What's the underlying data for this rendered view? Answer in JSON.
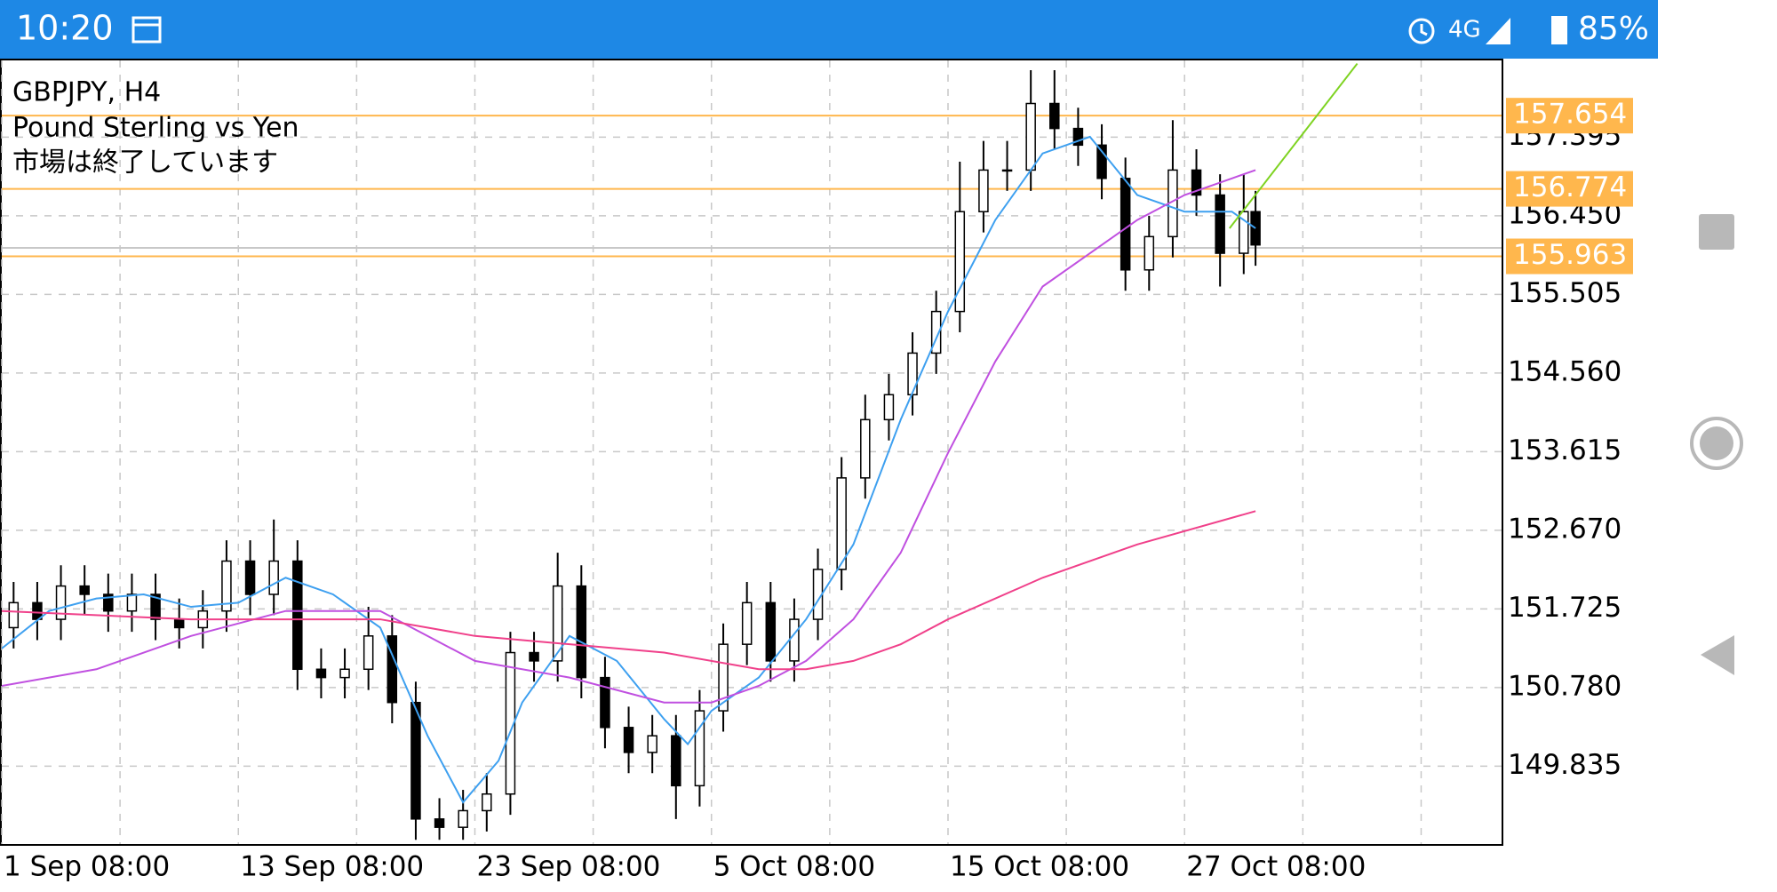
{
  "status_bar": {
    "time": "10:20",
    "network": "4G",
    "battery": "85%"
  },
  "chart_data": {
    "type": "candlestick",
    "title": "GBPJPY, H4",
    "subtitle": "Pound Sterling vs Yen",
    "annotation": "市場は終了しています",
    "ylim": [
      148.899,
      158.318
    ],
    "yticks": [
      149.835,
      {
        "value": 150.78,
        "label": "150.780"
      },
      151.725,
      {
        "value": 152.67,
        "label": "152.670"
      },
      153.615,
      {
        "value": 154.56,
        "label": "154.560"
      },
      155.505,
      {
        "value": 156.45,
        "label": "156.450"
      },
      157.395
    ],
    "xlim": [
      0,
      63.4
    ],
    "xticks": [
      {
        "value": 0,
        "label": "1 Sep 08:00"
      },
      {
        "value": 10,
        "label": "13 Sep 08:00"
      },
      {
        "value": 20,
        "label": "23 Sep 08:00"
      },
      {
        "value": 30,
        "label": "5 Oct 08:00"
      },
      {
        "value": 40,
        "label": "15 Oct 08:00"
      },
      {
        "value": 50,
        "label": "27 Oct 08:00"
      }
    ],
    "xgrid": [
      5,
      15,
      25,
      35,
      45,
      55,
      60
    ],
    "grid": true,
    "x": [
      0.5,
      1.5,
      2.5,
      3.5,
      4.5,
      5.5,
      6.5,
      7.5,
      8.5,
      9.5,
      10.5,
      11.5,
      12.5,
      13.5,
      14.5,
      15.5,
      16.5,
      17.5,
      18.5,
      19.5,
      20.5,
      21.5,
      22.5,
      23.5,
      24.5,
      25.5,
      26.5,
      27.5,
      28.5,
      29.5,
      30.5,
      31.5,
      32.5,
      33.5,
      34.5,
      35.5,
      36.5,
      37.5,
      38.5,
      39.5,
      40.5,
      41.5,
      42.5,
      43.5,
      44.5,
      45.5,
      46.5,
      47.5,
      48.5,
      49.5,
      50.5,
      51.5,
      52.5,
      53.0
    ],
    "ohlc": [
      [
        151.5,
        152.05,
        151.25,
        151.8
      ],
      [
        151.8,
        152.05,
        151.35,
        151.6
      ],
      [
        151.6,
        152.25,
        151.35,
        152.0
      ],
      [
        152.0,
        152.25,
        151.65,
        151.9
      ],
      [
        151.9,
        152.15,
        151.45,
        151.7
      ],
      [
        151.7,
        152.15,
        151.45,
        151.9
      ],
      [
        151.9,
        152.15,
        151.35,
        151.6
      ],
      [
        151.6,
        151.85,
        151.25,
        151.5
      ],
      [
        151.5,
        151.95,
        151.25,
        151.7
      ],
      [
        151.7,
        152.55,
        151.45,
        152.3
      ],
      [
        152.3,
        152.55,
        151.65,
        151.9
      ],
      [
        151.9,
        152.8,
        151.65,
        152.3
      ],
      [
        152.3,
        152.55,
        150.75,
        151.0
      ],
      [
        151.0,
        151.25,
        150.65,
        150.9
      ],
      [
        150.9,
        151.25,
        150.65,
        151.0
      ],
      [
        151.0,
        151.75,
        150.75,
        151.4
      ],
      [
        151.4,
        151.65,
        150.35,
        150.6
      ],
      [
        150.6,
        150.85,
        148.95,
        149.2
      ],
      [
        149.2,
        149.45,
        148.95,
        149.1
      ],
      [
        149.1,
        149.55,
        148.95,
        149.3
      ],
      [
        149.3,
        149.75,
        149.05,
        149.5
      ],
      [
        149.5,
        151.45,
        149.25,
        151.2
      ],
      [
        151.2,
        151.45,
        150.85,
        151.1
      ],
      [
        151.1,
        152.4,
        150.85,
        152.0
      ],
      [
        152.0,
        152.25,
        150.65,
        150.9
      ],
      [
        150.9,
        151.15,
        150.05,
        150.3
      ],
      [
        150.3,
        150.55,
        149.75,
        150.0
      ],
      [
        150.0,
        150.45,
        149.75,
        150.2
      ],
      [
        150.2,
        150.45,
        149.2,
        149.6
      ],
      [
        149.6,
        150.75,
        149.35,
        150.5
      ],
      [
        150.5,
        151.55,
        150.25,
        151.3
      ],
      [
        151.3,
        152.05,
        151.05,
        151.8
      ],
      [
        151.8,
        152.05,
        150.85,
        151.1
      ],
      [
        151.1,
        151.85,
        150.85,
        151.6
      ],
      [
        151.6,
        152.45,
        151.35,
        152.2
      ],
      [
        152.2,
        153.55,
        151.95,
        153.3
      ],
      [
        153.3,
        154.3,
        153.05,
        154.0
      ],
      [
        154.0,
        154.55,
        153.75,
        154.3
      ],
      [
        154.3,
        155.05,
        154.05,
        154.8
      ],
      [
        154.8,
        155.55,
        154.55,
        155.3
      ],
      [
        155.3,
        157.1,
        155.05,
        156.5
      ],
      [
        156.5,
        157.35,
        156.25,
        157.0
      ],
      [
        157.0,
        157.35,
        156.75,
        157.0
      ],
      [
        157.0,
        158.2,
        156.75,
        157.8
      ],
      [
        157.8,
        158.2,
        157.25,
        157.5
      ],
      [
        157.5,
        157.75,
        157.05,
        157.3
      ],
      [
        157.3,
        157.55,
        156.65,
        156.9
      ],
      [
        156.9,
        157.15,
        155.55,
        155.8
      ],
      [
        155.8,
        156.45,
        155.55,
        156.2
      ],
      [
        156.2,
        157.6,
        155.95,
        157.0
      ],
      [
        157.0,
        157.25,
        156.45,
        156.7
      ],
      [
        156.7,
        156.95,
        155.6,
        156.0
      ],
      [
        156.0,
        156.95,
        155.75,
        156.5
      ],
      [
        156.5,
        156.75,
        155.85,
        156.1
      ]
    ],
    "bull_color": "#ffffff",
    "bear_color": "#000000",
    "moving_averages": [
      {
        "color": "#3ea0f0",
        "x": [
          0,
          2,
          4,
          6,
          8,
          10,
          12,
          14,
          16,
          18,
          19.5,
          21,
          22,
          24,
          26,
          28,
          29,
          30,
          32,
          34,
          36,
          38,
          40,
          42,
          44,
          46,
          48,
          50,
          52,
          53
        ],
        "values": [
          151.25,
          151.7,
          151.85,
          151.9,
          151.75,
          151.8,
          152.1,
          151.9,
          151.5,
          150.2,
          149.4,
          149.9,
          150.6,
          151.4,
          151.1,
          150.4,
          150.1,
          150.5,
          150.9,
          151.6,
          152.5,
          154.0,
          155.3,
          156.4,
          157.2,
          157.4,
          156.7,
          156.5,
          156.5,
          156.3
        ]
      },
      {
        "color": "#c050e0",
        "x": [
          0,
          4,
          8,
          12,
          16,
          20,
          24,
          28,
          30,
          32,
          34,
          36,
          38,
          40,
          42,
          44,
          46,
          48,
          50,
          52,
          53
        ],
        "values": [
          150.8,
          151.0,
          151.4,
          151.7,
          151.7,
          151.1,
          150.9,
          150.6,
          150.6,
          150.8,
          151.1,
          151.6,
          152.4,
          153.6,
          154.7,
          155.6,
          156.0,
          156.4,
          156.7,
          156.9,
          157.0
        ]
      },
      {
        "color": "#f0408a",
        "x": [
          0,
          8,
          12,
          16,
          20,
          24,
          28,
          32,
          34,
          36,
          38,
          40,
          44,
          48,
          53
        ],
        "values": [
          151.7,
          151.6,
          151.6,
          151.6,
          151.4,
          151.3,
          151.2,
          151.0,
          151.0,
          151.1,
          151.3,
          151.6,
          152.1,
          152.5,
          152.9
        ]
      }
    ],
    "price_levels": [
      157.654,
      156.774,
      155.963
    ],
    "level_color": "#ffb74d",
    "reference_line": 156.065,
    "trendline": {
      "color": "#7ed321",
      "x": [
        51.9,
        57.3
      ],
      "y": [
        156.3,
        158.28
      ]
    }
  }
}
